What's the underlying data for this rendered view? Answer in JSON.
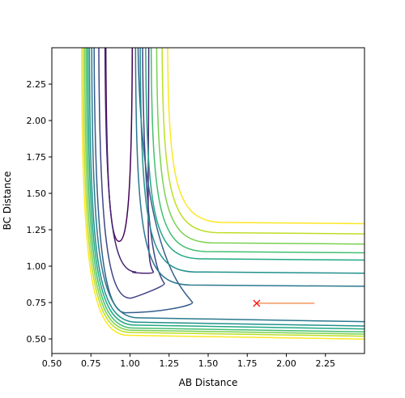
{
  "chart_data": {
    "type": "contour",
    "xlabel": "AB Distance",
    "ylabel": "BC Distance",
    "xlim": [
      0.5,
      2.5
    ],
    "ylim": [
      0.4,
      2.5
    ],
    "xticks": [
      0.5,
      0.75,
      1.0,
      1.25,
      1.5,
      1.75,
      2.0,
      2.25
    ],
    "xtick_labels": [
      "0.50",
      "0.75",
      "1.00",
      "1.25",
      "1.50",
      "1.75",
      "2.00",
      "2.25"
    ],
    "yticks": [
      0.5,
      0.75,
      1.0,
      1.25,
      1.5,
      1.75,
      2.0,
      2.25
    ],
    "ytick_labels": [
      "0.50",
      "0.75",
      "1.00",
      "1.25",
      "1.50",
      "1.75",
      "2.00",
      "2.25"
    ],
    "grid": false,
    "colormap": "viridis",
    "contour_levels": [
      {
        "level": 0,
        "color": "#440154",
        "ab_min": 0.93,
        "bc_min": 1.17,
        "closed_level": true
      },
      {
        "level": 1,
        "color": "#482475",
        "ab_min": 0.84,
        "bc_min": 0.96,
        "tip_ab": 1.15,
        "tip_bc": 0.96
      },
      {
        "level": 2,
        "color": "#414487",
        "ab_min": 0.8,
        "bc_min": 0.78,
        "tip_ab": 1.22,
        "tip_bc": 0.88
      },
      {
        "level": 3,
        "color": "#355f8d",
        "ab_min": 0.77,
        "bc_min": 0.68,
        "tip_ab": 1.4,
        "tip_bc": 0.75
      },
      {
        "level": 4,
        "color": "#2a788e",
        "ab_min": 0.755,
        "bc_min": 0.645,
        "bc_far": 0.87
      },
      {
        "level": 5,
        "color": "#21918c",
        "ab_min": 0.74,
        "bc_min": 0.615,
        "bc_far": 0.96
      },
      {
        "level": 6,
        "color": "#22a884",
        "ab_min": 0.73,
        "bc_min": 0.595,
        "bc_far": 1.05
      },
      {
        "level": 7,
        "color": "#44bf70",
        "ab_min": 0.72,
        "bc_min": 0.575,
        "bc_far": 1.1
      },
      {
        "level": 8,
        "color": "#7ad151",
        "ab_min": 0.71,
        "bc_min": 0.56,
        "bc_far": 1.16
      },
      {
        "level": 9,
        "color": "#bddf26",
        "ab_min": 0.7,
        "bc_min": 0.545,
        "bc_far": 1.23
      },
      {
        "level": 10,
        "color": "#fde725",
        "ab_min": 0.69,
        "bc_min": 0.525,
        "bc_far": 1.3
      }
    ],
    "trajectory": {
      "start": [
        1.81,
        0.745
      ],
      "end": [
        2.18,
        0.745
      ],
      "marker": "x",
      "marker_color": "#ff0000",
      "line_color": "#f08040"
    }
  }
}
